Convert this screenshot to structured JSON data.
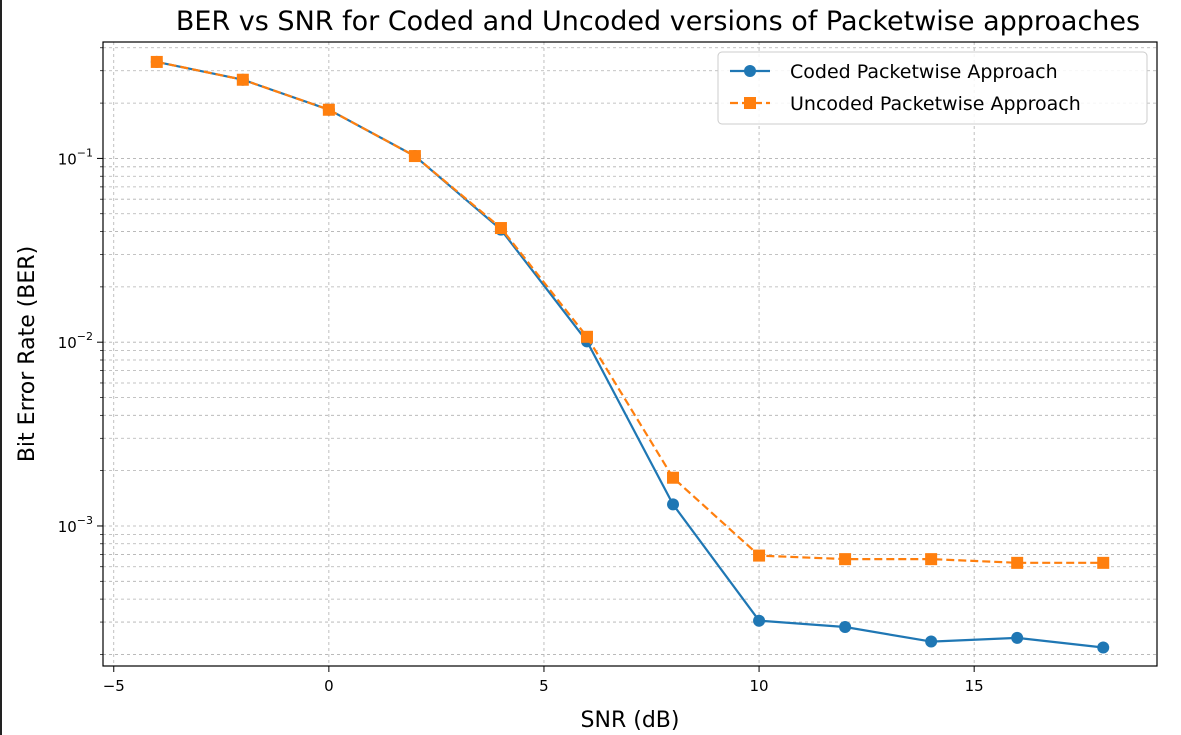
{
  "chart_data": {
    "type": "line",
    "title": "BER vs SNR for Coded and Uncoded versions of Packetwise approaches",
    "xlabel": "SNR (dB)",
    "ylabel": "Bit Error Rate (BER)",
    "yscale": "log",
    "xlim": [
      -5.25,
      19.25
    ],
    "ylim": [
      0.000173,
      0.43
    ],
    "x_ticks": [
      -5,
      0,
      5,
      10,
      15
    ],
    "x_tick_labels": [
      "−5",
      "0",
      "5",
      "10",
      "15"
    ],
    "y_ticks": [
      {
        "value": 0.1,
        "base": "10",
        "exponent": "−1"
      },
      {
        "value": 0.01,
        "base": "10",
        "exponent": "−2"
      },
      {
        "value": 0.001,
        "base": "10",
        "exponent": "−3"
      }
    ],
    "grid": true,
    "legend_position": "top-right",
    "x": [
      -4,
      -2,
      0,
      2,
      4,
      6,
      8,
      10,
      12,
      14,
      16,
      18
    ],
    "series": [
      {
        "name": "Coded Packetwise Approach",
        "color": "#1f77b4",
        "line_style": "solid",
        "marker": "circle",
        "values": [
          0.335,
          0.268,
          0.184,
          0.103,
          0.041,
          0.0101,
          0.00131,
          0.000305,
          0.000282,
          0.000235,
          0.000246,
          0.000218
        ]
      },
      {
        "name": "Uncoded Packetwise Approach",
        "color": "#ff7f0e",
        "line_style": "dashed",
        "marker": "square",
        "values": [
          0.335,
          0.268,
          0.184,
          0.103,
          0.0418,
          0.0107,
          0.00183,
          0.00069,
          0.00066,
          0.00066,
          0.00063,
          0.00063
        ]
      }
    ]
  }
}
